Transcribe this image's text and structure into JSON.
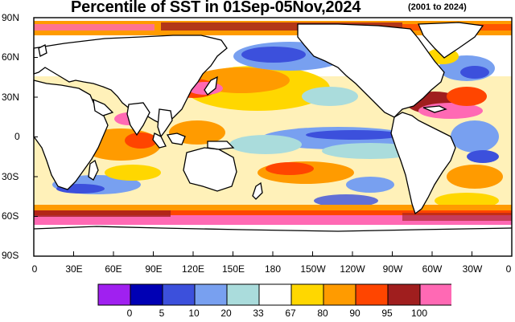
{
  "title": {
    "main": "Percentile of SST in 01Sep-05Nov,2024",
    "sub": "(2001 to 2024)"
  },
  "y_axis": {
    "labels": [
      "90N",
      "60N",
      "30N",
      "0",
      "30S",
      "60S",
      "90S"
    ]
  },
  "x_axis": {
    "labels": [
      "0",
      "30E",
      "60E",
      "90E",
      "120E",
      "150E",
      "180",
      "150W",
      "120W",
      "90W",
      "60W",
      "30W",
      "0"
    ]
  },
  "colorbar": {
    "labels": [
      "0",
      "5",
      "10",
      "20",
      "33",
      "67",
      "80",
      "90",
      "95",
      "100"
    ],
    "colors": [
      "#a020f0",
      "#0000b4",
      "#3c50dc",
      "#78a0f0",
      "#aadcdc",
      "#ffffff",
      "#ffd700",
      "#ff9b00",
      "#ff4500",
      "#a01e1e",
      "#ff69b4"
    ]
  },
  "colors": {
    "land": "#ffffff",
    "coast": "#000000"
  }
}
